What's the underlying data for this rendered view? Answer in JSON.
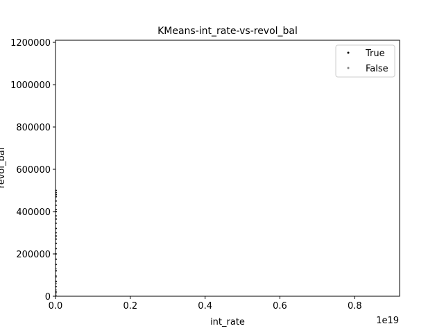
{
  "chart_data": {
    "type": "scatter",
    "title": "KMeans-int_rate-vs-revol_bal",
    "xlabel": "int_rate",
    "ylabel": "revol_bal",
    "x_offset_label": "1e19",
    "xlim": [
      0,
      0.92
    ],
    "ylim": [
      0,
      1210000
    ],
    "x_ticks": [
      0,
      0.2,
      0.4,
      0.6,
      0.8
    ],
    "x_tick_labels": [
      "0.0",
      "0.2",
      "0.4",
      "0.6",
      "0.8"
    ],
    "y_ticks": [
      0,
      200000,
      400000,
      600000,
      800000,
      1000000,
      1200000
    ],
    "y_tick_labels": [
      "0",
      "200000",
      "400000",
      "600000",
      "800000",
      "1000000",
      "1200000"
    ],
    "grid": false,
    "legend_position": "top-right",
    "series": [
      {
        "name": "True",
        "color": "#000000",
        "x": [
          0.0002,
          0.0003,
          0.0004,
          0.0002,
          0.0005,
          0.0003,
          0.0004,
          0.0002,
          0.0003,
          0.0005,
          0.0004,
          0.0003,
          0.0002,
          0.0004,
          0.0003,
          0.0005,
          0.0002,
          0.0004,
          0.0003,
          0.0002,
          0.0003,
          0.0004,
          0.0005,
          0.0002,
          0.0003
        ],
        "y": [
          20000,
          45000,
          70000,
          95000,
          120000,
          150000,
          175000,
          200000,
          225000,
          250000,
          270000,
          285000,
          300000,
          320000,
          345000,
          365000,
          380000,
          400000,
          410000,
          430000,
          450000,
          470000,
          480000,
          490000,
          500000
        ]
      },
      {
        "name": "False",
        "color": "#808080",
        "x": [
          0.0003,
          0.0004,
          0.0002,
          0.0005,
          0.0003,
          0.0004
        ],
        "y": [
          5000,
          15000,
          30000,
          60000,
          90000,
          130000
        ]
      }
    ]
  }
}
